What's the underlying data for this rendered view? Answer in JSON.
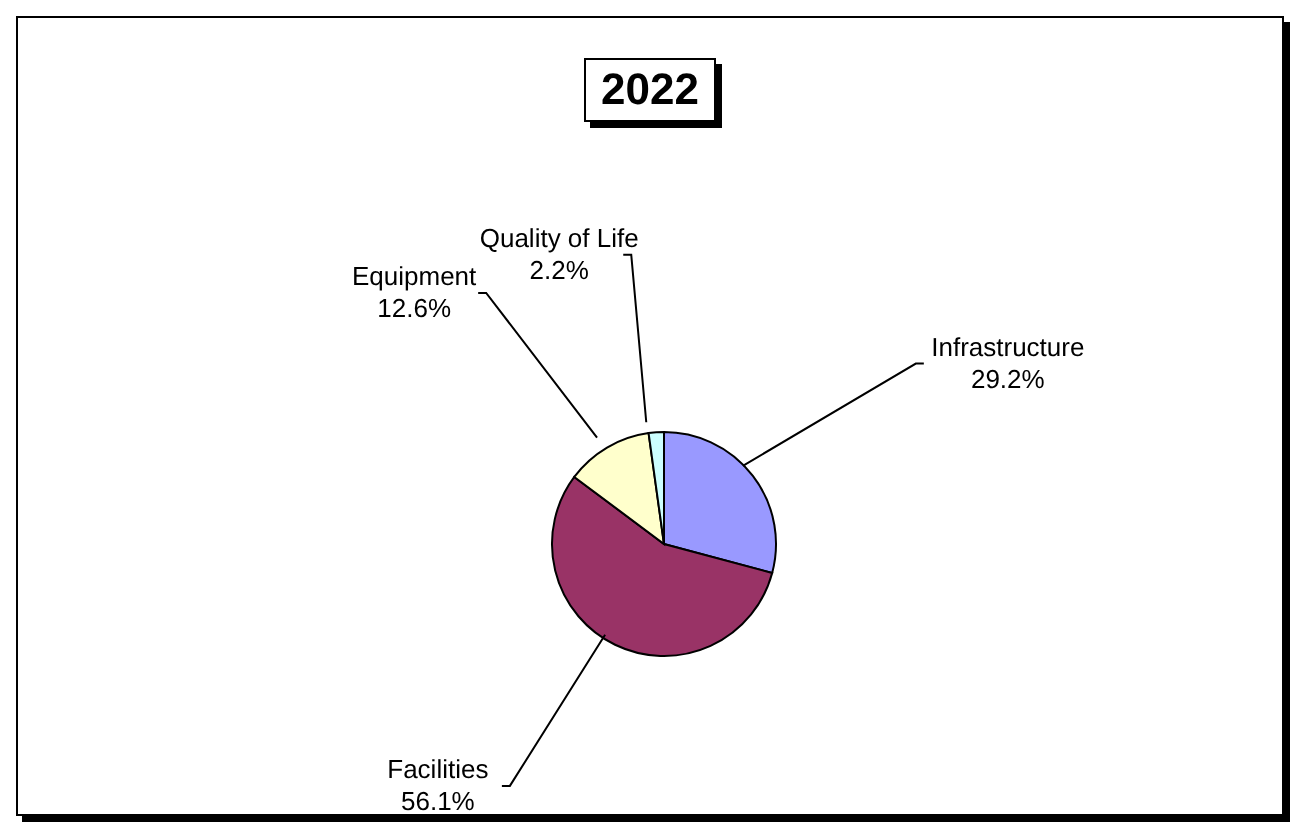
{
  "chart_data": {
    "type": "pie",
    "title": "2022",
    "categories": [
      "Infrastructure",
      "Facilities",
      "Equipment",
      "Quality of Life"
    ],
    "values": [
      29.2,
      56.1,
      12.6,
      2.2
    ],
    "colors": [
      "#9999ff",
      "#993366",
      "#ffffcc",
      "#ccffff"
    ],
    "value_labels": [
      "29.2%",
      "56.1%",
      "12.6%",
      "2.2%"
    ],
    "legend": false
  }
}
